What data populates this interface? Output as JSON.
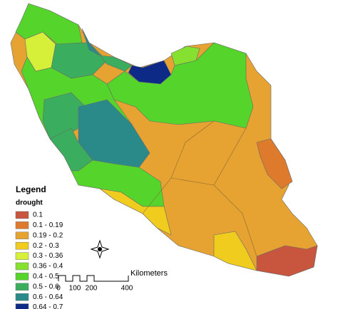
{
  "legend": {
    "title": "Legend",
    "subtitle": "drought",
    "items": [
      {
        "label": "0.1",
        "color": "#c8553d"
      },
      {
        "label": "0.1 - 0.19",
        "color": "#de7a2c"
      },
      {
        "label": "0.19 - 0.2",
        "color": "#e6a332"
      },
      {
        "label": "0.2 - 0.3",
        "color": "#f0cc1e"
      },
      {
        "label": "0.3 - 0.36",
        "color": "#d6f03a"
      },
      {
        "label": "0.36 - 0.4",
        "color": "#86e030"
      },
      {
        "label": "0.4 - 0.5",
        "color": "#55d42c"
      },
      {
        "label": "0.5 - 0.6",
        "color": "#3aae5e"
      },
      {
        "label": "0.6 - 0.64",
        "color": "#2a8a8a"
      },
      {
        "label": "0.64 - 0.7",
        "color": "#0c2a86"
      }
    ]
  },
  "scale_bar": {
    "unit": "Kilometers",
    "ticks": [
      "0",
      "100",
      "200",
      "400"
    ]
  }
}
